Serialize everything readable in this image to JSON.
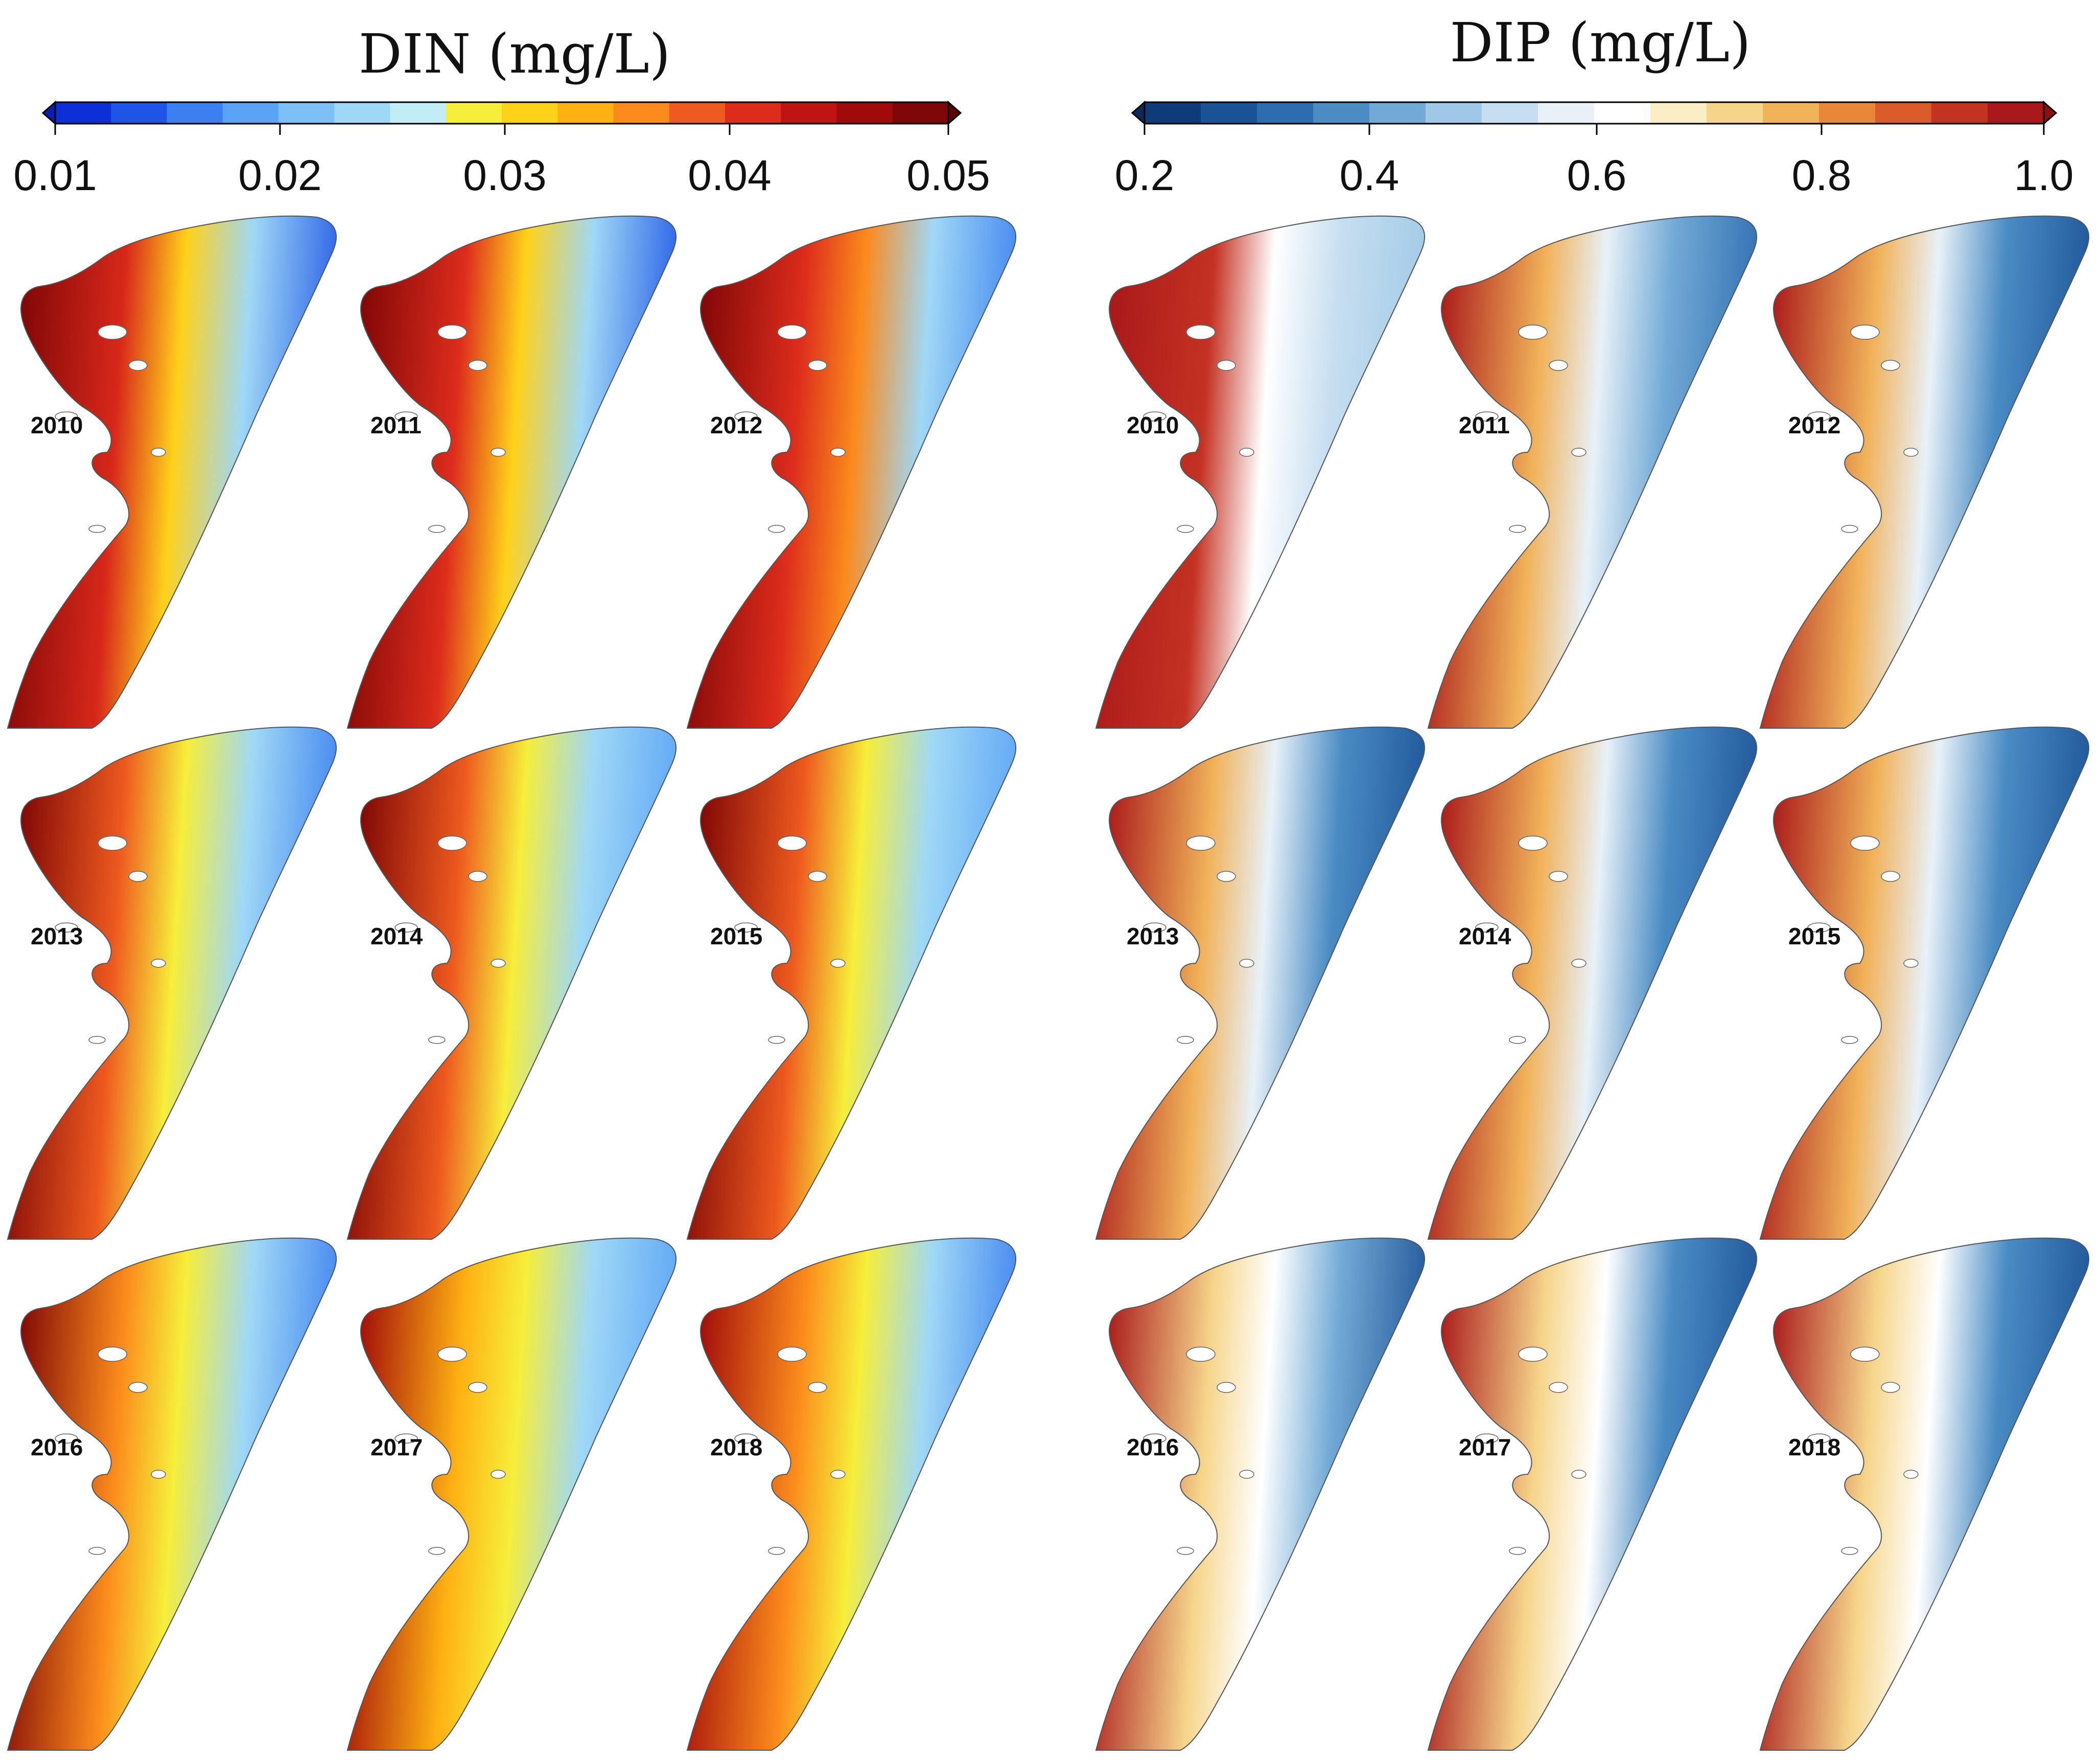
{
  "figure": {
    "panels": [
      {
        "id": "din",
        "title": "DIN (mg/L)",
        "colorbar": {
          "tick_labels": [
            "0.01",
            "0.02",
            "0.03",
            "0.04",
            "0.05"
          ],
          "range": [
            0.01,
            0.05
          ],
          "extend": "both",
          "levels": [
            "#0d2fd8",
            "#1f55e6",
            "#3b7ff0",
            "#5aa2f5",
            "#7cc0f7",
            "#9fd8f6",
            "#c2ecf6",
            "#f6ee3a",
            "#ffd21a",
            "#ffb012",
            "#fb8a1c",
            "#ee5a1f",
            "#dd2c1c",
            "#c01414",
            "#a00a0a",
            "#7e0606"
          ],
          "under_color": "#0a1fb0",
          "over_color": "#5c0404"
        },
        "maps": [
          {
            "year": "2010",
            "gradient": [
              "#7e0606",
              "#d8281a",
              "#ffd21a",
              "#9fd8f6",
              "#1f55e6"
            ]
          },
          {
            "year": "2011",
            "gradient": [
              "#7e0606",
              "#dd2c1c",
              "#ffd21a",
              "#9fd8f6",
              "#1f55e6"
            ]
          },
          {
            "year": "2012",
            "gradient": [
              "#7e0606",
              "#dd2c1c",
              "#fb8a1c",
              "#9fd8f6",
              "#3b7ff0"
            ]
          },
          {
            "year": "2013",
            "gradient": [
              "#7e0606",
              "#ee5a1f",
              "#f6ee3a",
              "#9fd8f6",
              "#3b7ff0"
            ]
          },
          {
            "year": "2014",
            "gradient": [
              "#7e0606",
              "#ee5a1f",
              "#f6ee3a",
              "#9fd8f6",
              "#5aa2f5"
            ]
          },
          {
            "year": "2015",
            "gradient": [
              "#7e0606",
              "#ee5a1f",
              "#f6ee3a",
              "#9fd8f6",
              "#5aa2f5"
            ]
          },
          {
            "year": "2016",
            "gradient": [
              "#7e0606",
              "#fb8a1c",
              "#f6ee3a",
              "#9fd8f6",
              "#3b7ff0"
            ]
          },
          {
            "year": "2017",
            "gradient": [
              "#a00a0a",
              "#ffb012",
              "#f6ee3a",
              "#9fd8f6",
              "#5aa2f5"
            ]
          },
          {
            "year": "2018",
            "gradient": [
              "#a00a0a",
              "#fb8a1c",
              "#f6ee3a",
              "#9fd8f6",
              "#3b7ff0"
            ]
          }
        ]
      },
      {
        "id": "dip",
        "title": "DIP (mg/L)",
        "colorbar": {
          "tick_labels": [
            "0.2",
            "0.4",
            "0.6",
            "0.8",
            "1.0"
          ],
          "range": [
            0.2,
            1.0
          ],
          "extend": "both",
          "levels": [
            "#0f3c78",
            "#1b5295",
            "#2c6bae",
            "#4b8cc4",
            "#72aad6",
            "#9ec8e6",
            "#c6def0",
            "#e8f1f8",
            "#ffffff",
            "#fbeec4",
            "#f6d58a",
            "#f1b259",
            "#e98739",
            "#da5a2a",
            "#c43222",
            "#a9181a"
          ],
          "under_color": "#0a2a5a",
          "over_color": "#8a0f12"
        },
        "maps": [
          {
            "year": "2010",
            "gradient": [
              "#a9181a",
              "#c43222",
              "#ffffff",
              "#c6def0",
              "#9ec8e6"
            ]
          },
          {
            "year": "2011",
            "gradient": [
              "#a9181a",
              "#f1b259",
              "#e8f1f8",
              "#72aad6",
              "#2c6bae"
            ]
          },
          {
            "year": "2012",
            "gradient": [
              "#a9181a",
              "#f1b259",
              "#e8f1f8",
              "#4b8cc4",
              "#1b5295"
            ]
          },
          {
            "year": "2013",
            "gradient": [
              "#a9181a",
              "#f1b259",
              "#e8f1f8",
              "#4b8cc4",
              "#1b5295"
            ]
          },
          {
            "year": "2014",
            "gradient": [
              "#a9181a",
              "#f1b259",
              "#e8f1f8",
              "#4b8cc4",
              "#1b5295"
            ]
          },
          {
            "year": "2015",
            "gradient": [
              "#a9181a",
              "#f1b259",
              "#e8f1f8",
              "#4b8cc4",
              "#1b5295"
            ]
          },
          {
            "year": "2016",
            "gradient": [
              "#a9181a",
              "#f6d58a",
              "#ffffff",
              "#72aad6",
              "#1b5295"
            ]
          },
          {
            "year": "2017",
            "gradient": [
              "#a9181a",
              "#f6d58a",
              "#ffffff",
              "#4b8cc4",
              "#1b5295"
            ]
          },
          {
            "year": "2018",
            "gradient": [
              "#a9181a",
              "#f6d58a",
              "#ffffff",
              "#4b8cc4",
              "#1b5295"
            ]
          }
        ]
      }
    ]
  }
}
